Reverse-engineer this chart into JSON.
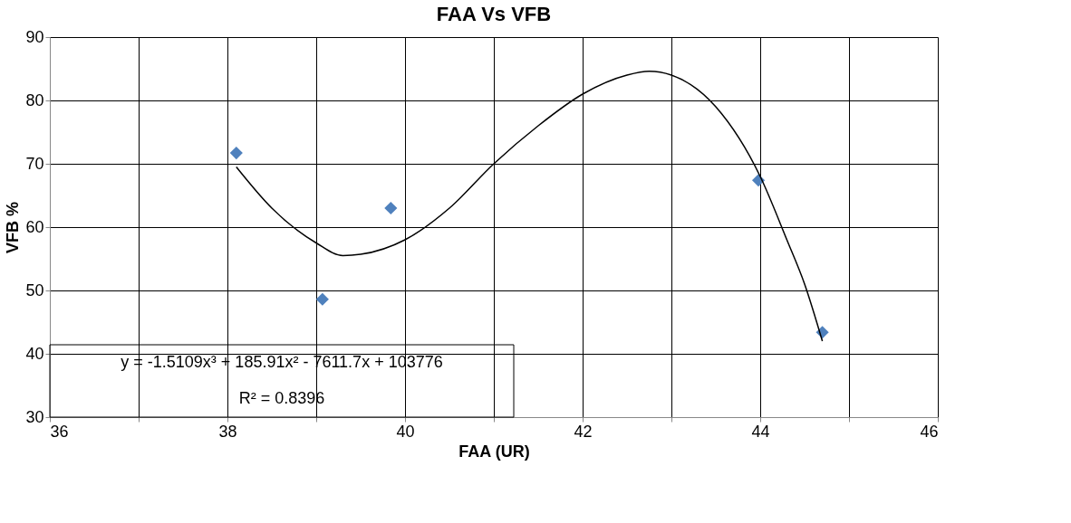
{
  "chart_data": {
    "type": "scatter",
    "title": "FAA Vs VFB",
    "xlabel": "FAA (UR)",
    "ylabel": "VFB %",
    "xlim": [
      36,
      46
    ],
    "ylim": [
      30,
      90
    ],
    "xticks": [
      36,
      {
        "value": 37,
        "label": null
      },
      38,
      {
        "value": 39,
        "label": null
      },
      40,
      {
        "value": 41,
        "label": null
      },
      42,
      {
        "value": 43,
        "label": null
      },
      44,
      {
        "value": 45,
        "label": null
      },
      46
    ],
    "yticks": [
      30,
      40,
      50,
      60,
      70,
      80,
      90
    ],
    "grid": true,
    "series": [
      {
        "color": "#4f81bd",
        "marker": "diamond",
        "x": [
          38.1,
          39.07,
          39.84,
          43.98,
          44.7
        ],
        "values": [
          71.7,
          48.6,
          63.0,
          67.4,
          43.4
        ]
      },
      {
        "type": "line",
        "color": "#000000",
        "marker": "none",
        "line_style": "solid",
        "x": [
          38.1,
          38.5,
          39.0,
          39.3,
          39.5,
          40.0,
          40.5,
          41.0,
          41.5,
          42.0,
          42.5,
          42.75,
          43.0,
          43.5,
          44.0,
          44.3,
          44.5,
          44.7
        ],
        "values": [
          69.5,
          63,
          57.5,
          55.5,
          55.7,
          58,
          63,
          70,
          76,
          81,
          84,
          84.6,
          84,
          79,
          68,
          58,
          51,
          42
        ]
      }
    ],
    "annotations": [
      "y = -1.5109x³ + 185.91x² - 7611.7x + 103776",
      "R² = 0.8396"
    ]
  }
}
